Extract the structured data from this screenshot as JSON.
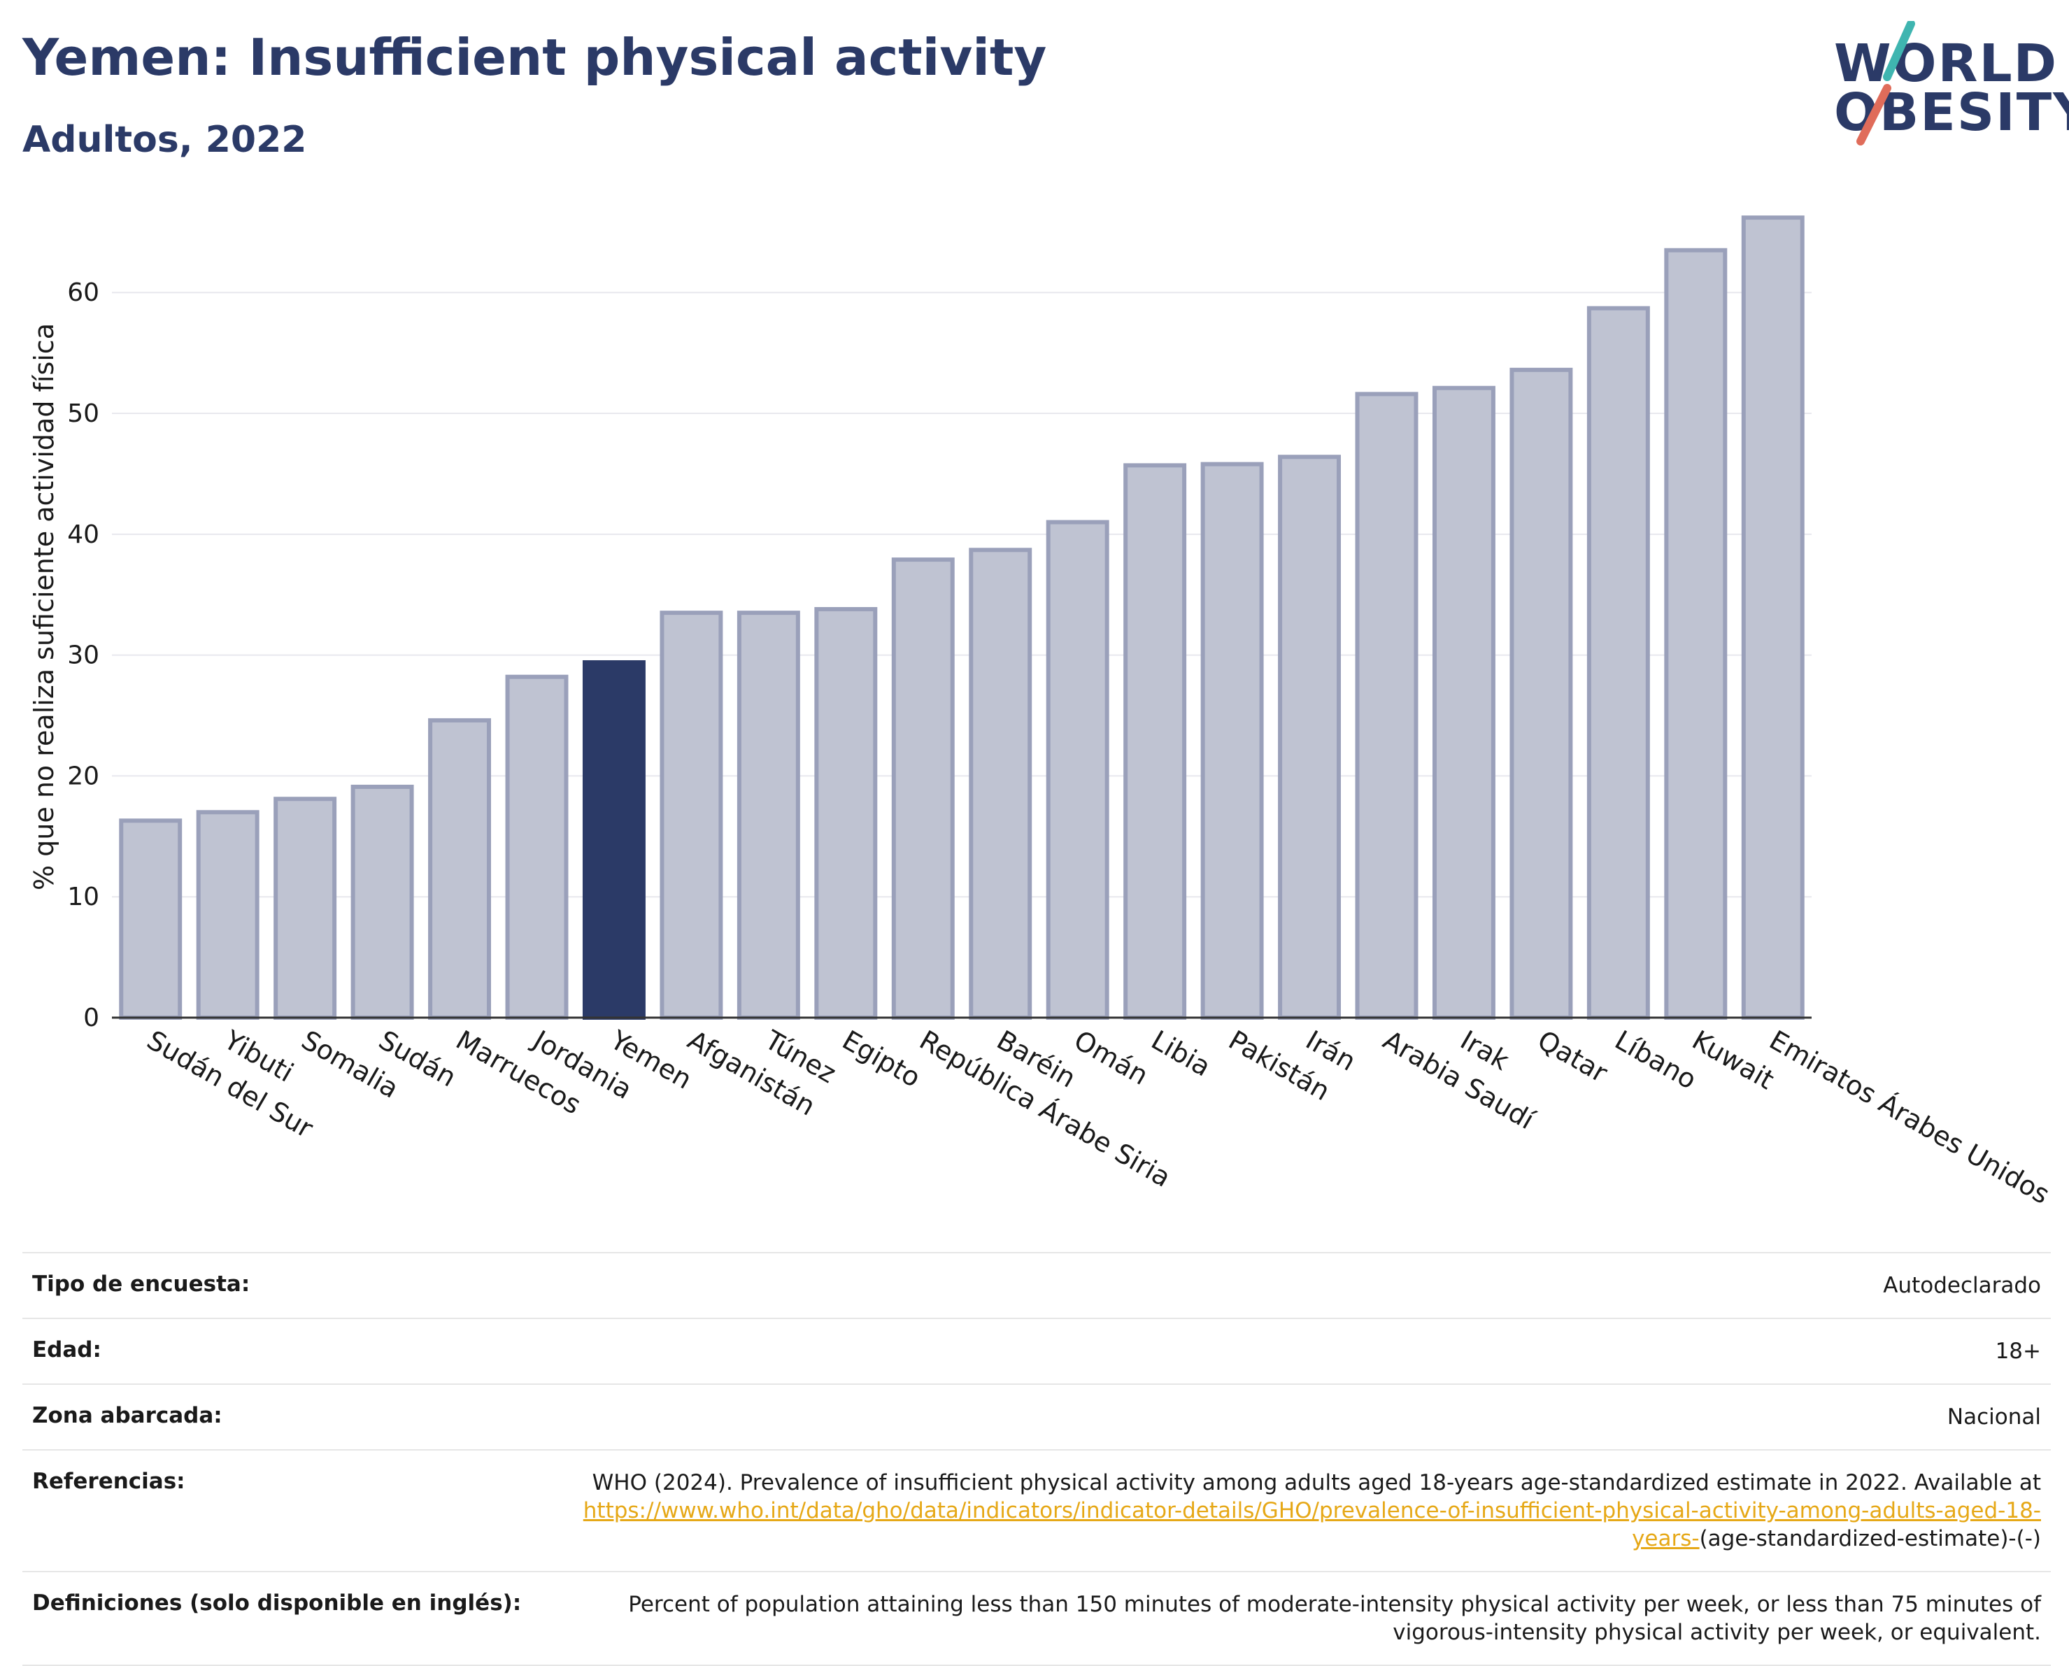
{
  "title": "Yemen: Insufficient physical activity",
  "subtitle": "Adultos, 2022",
  "logo": {
    "line1": "WORLD",
    "line2": "OBESITY",
    "accent_teal": "#3fb5b0",
    "accent_red": "#e06c5a"
  },
  "colors": {
    "highlight": "#2b3a67",
    "bar": "#bfc3d2",
    "bar_stroke": "#9aa0ba"
  },
  "chart_data": {
    "type": "bar",
    "ylabel": "% que no realiza suficiente actividad física",
    "ylim": [
      0,
      68
    ],
    "yticks": [
      0,
      10,
      20,
      30,
      40,
      50,
      60
    ],
    "grid": true,
    "highlight": "Yemen",
    "categories": [
      "Sudán del Sur",
      "Yibuti",
      "Somalia",
      "Sudán",
      "Marruecos",
      "Jordania",
      "Yemen",
      "Afganistán",
      "Túnez",
      "Egipto",
      "República Árabe Siria",
      "Baréin",
      "Omán",
      "Libia",
      "Pakistán",
      "Irán",
      "Arabia Saudí",
      "Irak",
      "Qatar",
      "Líbano",
      "Kuwait",
      "Emiratos Árabes Unidos"
    ],
    "values": [
      16.3,
      17.0,
      18.1,
      19.1,
      24.6,
      28.2,
      29.4,
      33.5,
      33.5,
      33.8,
      37.9,
      38.7,
      41.0,
      45.7,
      45.8,
      46.4,
      51.6,
      52.1,
      53.6,
      58.7,
      63.5,
      66.2
    ]
  },
  "info": {
    "survey_label": "Tipo de encuesta:",
    "survey_value": "Autodeclarado",
    "age_label": "Edad:",
    "age_value": "18+",
    "area_label": "Zona abarcada:",
    "area_value": "Nacional",
    "ref_label": "Referencias:",
    "ref_text": "WHO (2024). Prevalence of insufficient physical activity among adults aged 18-years age-standardized estimate in 2022. Available at",
    "ref_link": "https://www.who.int/data/gho/data/indicators/indicator-details/GHO/prevalence-of-insufficient-physical-activity-among-adults-aged-18-years-",
    "ref_tail": "(age-standardized-estimate)-(-)",
    "def_label": "Definiciones (solo disponible en inglés):",
    "def_value": "Percent of population attaining less than 150 minutes of moderate-intensity physical activity per week, or less than 75 minutes of vigorous-intensity physical activity per week, or equivalent."
  }
}
